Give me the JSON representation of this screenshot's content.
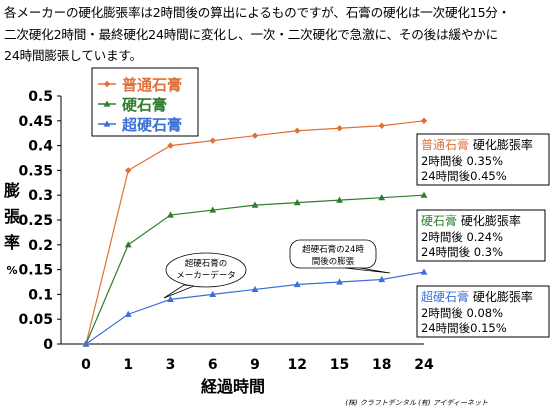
{
  "intro_lines": [
    "各メーカーの硬化膨張率は2時間後の算出によるものですが、石膏の硬化は一次硬化15分・",
    "二次硬化2時間・最終硬化24時間に変化し、一次・二次硬化で急激に、その後は緩やかに",
    "24時間膨張しています。"
  ],
  "credit": "(株) クラフトデンタル  (有) アイディーネット",
  "chart_data": {
    "type": "line",
    "categories": [
      "0",
      "1",
      "3",
      "6",
      "9",
      "12",
      "15",
      "18",
      "24"
    ],
    "xlabel": "経過時間",
    "ylabel": "膨張率%",
    "ylim": [
      0,
      0.5
    ],
    "yticks": [
      "0",
      "0.05",
      "0.1",
      "0.15",
      "0.2",
      "0.25",
      "0.3",
      "0.35",
      "0.4",
      "0.45",
      "0.5"
    ],
    "legend_position": "top-left",
    "grid": false,
    "series": [
      {
        "name": "普通石膏",
        "color": "#e0703a",
        "marker": "diamond",
        "values": [
          0,
          0.35,
          0.4,
          0.41,
          0.42,
          0.43,
          0.435,
          0.44,
          0.45
        ]
      },
      {
        "name": "硬石膏",
        "color": "#2e7d2e",
        "marker": "triangle",
        "values": [
          0,
          0.2,
          0.26,
          0.27,
          0.28,
          0.285,
          0.29,
          0.295,
          0.3
        ]
      },
      {
        "name": "超硬石膏",
        "color": "#3a6fd8",
        "marker": "triangle",
        "values": [
          0,
          0.06,
          0.09,
          0.1,
          0.11,
          0.12,
          0.125,
          0.13,
          0.145
        ]
      }
    ],
    "annotations": [
      {
        "id": "normal",
        "title": "普通石膏",
        "title_color": "#e0703a",
        "suffix": "硬化膨張率",
        "lines": [
          "2時間後 0.35%",
          "24時間後0.45%"
        ]
      },
      {
        "id": "hard",
        "title": "硬石膏",
        "title_color": "#2e7d2e",
        "suffix": "硬化膨張率",
        "lines": [
          "2時間後 0.24%",
          "24時間後 0.3%"
        ]
      },
      {
        "id": "super",
        "title": "超硬石膏",
        "title_color": "#3a6fd8",
        "suffix": "硬化膨張率",
        "lines": [
          "2時間後 0.08%",
          "24時間後0.15%"
        ]
      }
    ],
    "callouts": [
      {
        "id": "maker",
        "lines": [
          "超硬石膏の",
          "メーカーデータ"
        ]
      },
      {
        "id": "24h",
        "lines": [
          "超硬石膏の24時",
          "間後の膨張"
        ]
      }
    ]
  }
}
